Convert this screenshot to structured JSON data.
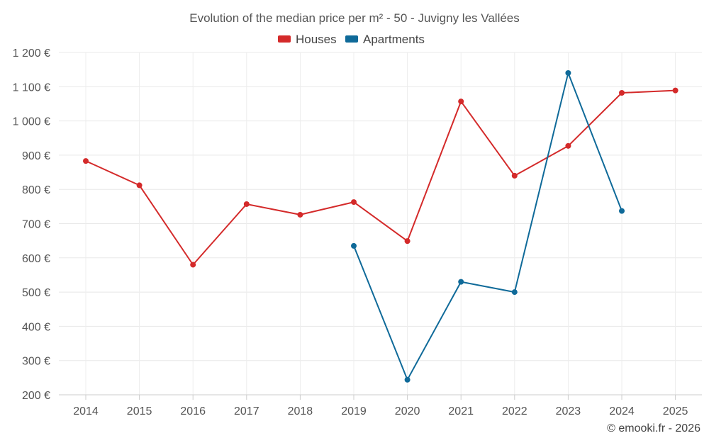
{
  "chart_data": {
    "type": "line",
    "title": "Evolution of the median price per m² - 50 - Juvigny les Vallées",
    "categories": [
      "2014",
      "2015",
      "2016",
      "2017",
      "2018",
      "2019",
      "2020",
      "2021",
      "2022",
      "2023",
      "2024",
      "2025"
    ],
    "y_ticks": [
      "200 €",
      "300 €",
      "400 €",
      "500 €",
      "600 €",
      "700 €",
      "800 €",
      "900 €",
      "1 000 €",
      "1 100 €",
      "1 200 €"
    ],
    "ylim": [
      200,
      1200
    ],
    "series": [
      {
        "name": "Houses",
        "color": "#d42a2a",
        "values": [
          883,
          812,
          580,
          757,
          726,
          763,
          649,
          1057,
          840,
          927,
          1082,
          1089
        ]
      },
      {
        "name": "Apartments",
        "color": "#0f6a99",
        "values": [
          null,
          null,
          null,
          null,
          null,
          635,
          244,
          530,
          500,
          1140,
          737,
          null
        ]
      }
    ],
    "credit": "© emooki.fr - 2026"
  }
}
